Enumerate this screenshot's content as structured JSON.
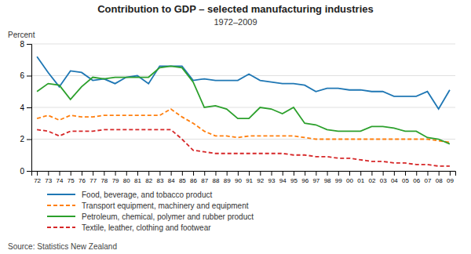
{
  "chart_data": {
    "type": "line",
    "title": "Contribution to GDP – selected manufacturing industries",
    "subtitle": "1972–2009",
    "y_label": "Percent",
    "source": "Source: Statistics New Zealand",
    "categories": [
      "72",
      "73",
      "74",
      "75",
      "76",
      "77",
      "78",
      "79",
      "80",
      "81",
      "82",
      "83",
      "84",
      "85",
      "86",
      "87",
      "88",
      "89",
      "90",
      "91",
      "92",
      "93",
      "94",
      "95",
      "96",
      "97",
      "98",
      "99",
      "00",
      "01",
      "02",
      "03",
      "04",
      "05",
      "06",
      "07",
      "08",
      "09"
    ],
    "series": [
      {
        "name": "Food, beverage, and tobacco product",
        "line_style": "solid",
        "values": [
          7.2,
          6.2,
          5.3,
          6.3,
          6.2,
          5.7,
          5.8,
          5.5,
          5.9,
          6.0,
          5.5,
          6.6,
          6.6,
          6.6,
          5.7,
          5.8,
          5.7,
          5.7,
          5.7,
          6.1,
          5.7,
          5.6,
          5.5,
          5.5,
          5.4,
          5.0,
          5.2,
          5.2,
          5.1,
          5.1,
          5.0,
          5.0,
          4.7,
          4.7,
          4.7,
          5.0,
          3.9,
          5.1
        ]
      },
      {
        "name": "Transport equipment, machinery and equipment",
        "line_style": "dashed",
        "values": [
          3.3,
          3.5,
          3.2,
          3.5,
          3.4,
          3.4,
          3.5,
          3.5,
          3.5,
          3.5,
          3.5,
          3.5,
          3.9,
          3.4,
          3.0,
          2.5,
          2.2,
          2.2,
          2.1,
          2.2,
          2.2,
          2.2,
          2.2,
          2.2,
          2.1,
          2.0,
          2.0,
          2.0,
          2.0,
          2.0,
          2.0,
          2.0,
          2.0,
          2.0,
          2.0,
          2.0,
          1.9,
          1.8
        ]
      },
      {
        "name": "Petroleum, chemical, polymer and rubber product",
        "line_style": "solid",
        "values": [
          5.0,
          5.5,
          5.4,
          4.5,
          5.3,
          5.9,
          5.8,
          5.9,
          5.9,
          5.9,
          5.9,
          6.5,
          6.6,
          6.5,
          5.6,
          4.0,
          4.1,
          3.9,
          3.3,
          3.3,
          4.0,
          3.9,
          3.6,
          4.0,
          3.0,
          2.9,
          2.6,
          2.5,
          2.5,
          2.5,
          2.8,
          2.8,
          2.7,
          2.5,
          2.5,
          2.1,
          2.0,
          1.7
        ]
      },
      {
        "name": "Textile, leather, clothing and footwear",
        "line_style": "dashed",
        "values": [
          2.6,
          2.5,
          2.2,
          2.5,
          2.5,
          2.5,
          2.6,
          2.6,
          2.6,
          2.6,
          2.6,
          2.6,
          2.6,
          2.0,
          1.3,
          1.2,
          1.1,
          1.1,
          1.1,
          1.1,
          1.1,
          1.1,
          1.1,
          1.0,
          1.0,
          0.9,
          0.9,
          0.8,
          0.8,
          0.7,
          0.6,
          0.6,
          0.5,
          0.5,
          0.4,
          0.4,
          0.3,
          0.3
        ]
      }
    ],
    "ylim": [
      0,
      8
    ],
    "yticks": [
      0,
      2,
      4,
      6,
      8
    ],
    "grid": true,
    "legend": "bottom"
  }
}
